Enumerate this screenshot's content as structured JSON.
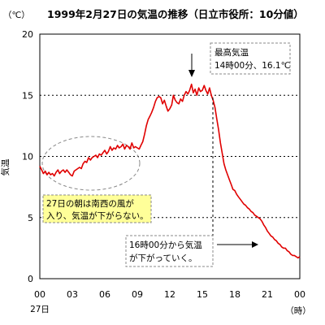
{
  "chart_data": {
    "type": "line",
    "title": "1999年2月27日の気温の推移（日立市役所：10分値）",
    "unit_label": "（℃）",
    "ylabel": "気温",
    "xlabel_unit": "（時）",
    "date_label": "27日",
    "ylim": [
      0,
      20
    ],
    "xlim": [
      0,
      24
    ],
    "y_ticks": [
      "0",
      "5",
      "10",
      "15",
      "20"
    ],
    "y_tick_values": [
      0,
      5,
      10,
      15,
      20
    ],
    "x_ticks": [
      "00",
      "03",
      "06",
      "09",
      "12",
      "15",
      "18",
      "21",
      "00"
    ],
    "x_tick_values": [
      0,
      3,
      6,
      9,
      12,
      15,
      18,
      21,
      24
    ],
    "grid": "dashed horizontal at 5, 10, 15",
    "line_color": "#e00000",
    "series": [
      {
        "x": [
          0.0,
          0.17,
          0.33,
          0.5,
          0.67,
          0.83,
          1.0,
          1.17,
          1.33,
          1.5,
          1.67,
          1.83,
          2.0,
          2.17,
          2.33,
          2.5,
          2.67,
          2.83,
          3.0,
          3.17,
          3.33,
          3.5,
          3.67,
          3.83,
          4.0,
          4.17,
          4.33,
          4.5,
          4.67,
          4.83,
          5.0,
          5.17,
          5.33,
          5.5,
          5.67,
          5.83,
          6.0,
          6.17,
          6.33,
          6.5,
          6.67,
          6.83,
          7.0,
          7.17,
          7.33,
          7.5,
          7.67,
          7.83,
          8.0,
          8.17,
          8.33,
          8.5,
          8.67,
          8.83,
          9.0,
          9.17,
          9.33,
          9.5,
          9.67,
          9.83,
          10.0,
          10.17,
          10.33,
          10.5,
          10.67,
          10.83,
          11.0,
          11.17,
          11.33,
          11.5,
          11.67,
          11.83,
          12.0,
          12.17,
          12.33,
          12.5,
          12.67,
          12.83,
          13.0,
          13.17,
          13.33,
          13.5,
          13.67,
          13.83,
          14.0,
          14.17,
          14.33,
          14.5,
          14.67,
          14.83,
          15.0,
          15.17,
          15.33,
          15.5,
          15.67,
          15.83,
          16.0,
          16.17,
          16.33,
          16.5,
          16.67,
          16.83,
          17.0,
          17.17,
          17.33,
          17.5,
          17.67,
          17.83,
          18.0,
          18.17,
          18.33,
          18.5,
          18.67,
          18.83,
          19.0,
          19.17,
          19.33,
          19.5,
          19.67,
          19.83,
          20.0,
          20.17,
          20.33,
          20.5,
          20.67,
          20.83,
          21.0,
          21.17,
          21.33,
          21.5,
          21.67,
          21.83,
          22.0,
          22.17,
          22.33,
          22.5,
          22.67,
          22.83,
          23.0,
          23.17,
          23.33,
          23.5,
          23.67,
          23.83,
          24.0
        ],
        "values": [
          9.2,
          8.9,
          8.6,
          8.8,
          8.5,
          8.7,
          8.5,
          8.6,
          8.4,
          8.7,
          8.9,
          8.6,
          8.8,
          8.9,
          8.7,
          8.9,
          8.7,
          8.5,
          8.4,
          8.8,
          8.9,
          9.0,
          9.1,
          9.0,
          9.4,
          9.6,
          9.5,
          9.9,
          9.7,
          9.9,
          10.0,
          10.1,
          9.9,
          10.2,
          10.1,
          10.3,
          10.5,
          10.2,
          10.4,
          10.8,
          10.5,
          10.7,
          10.6,
          10.9,
          10.7,
          10.8,
          11.0,
          10.6,
          10.9,
          10.8,
          10.6,
          11.1,
          10.7,
          10.8,
          10.7,
          10.6,
          10.9,
          11.2,
          11.8,
          12.5,
          13.0,
          13.3,
          13.6,
          14.0,
          14.5,
          14.8,
          14.9,
          14.8,
          14.3,
          14.6,
          14.1,
          13.7,
          13.9,
          14.2,
          15.0,
          14.6,
          14.4,
          14.3,
          14.7,
          14.5,
          15.0,
          15.3,
          15.1,
          15.4,
          15.9,
          15.2,
          15.5,
          15.0,
          15.6,
          15.3,
          15.4,
          15.8,
          15.4,
          15.1,
          15.6,
          15.0,
          14.6,
          14.0,
          13.1,
          12.2,
          11.1,
          10.3,
          9.4,
          8.9,
          8.5,
          8.1,
          7.7,
          7.3,
          7.2,
          6.9,
          6.7,
          6.5,
          6.3,
          6.1,
          6.0,
          5.8,
          5.7,
          5.5,
          5.4,
          5.2,
          5.1,
          5.0,
          4.9,
          4.7,
          4.4,
          4.2,
          3.9,
          3.7,
          3.5,
          3.4,
          3.2,
          3.1,
          2.9,
          2.8,
          2.6,
          2.5,
          2.5,
          2.3,
          2.2,
          2.0,
          1.9,
          1.9,
          1.8,
          1.7,
          1.8
        ]
      }
    ],
    "annotations": {
      "max_box": {
        "line1": "最高気温",
        "line2": "14時00分、16.1℃"
      },
      "morning_box": {
        "line1": "27日の朝は南西の風が",
        "line2": "入り、気温が下がらない。"
      },
      "drop_box": {
        "line1": "16時00分から気温",
        "line2": "が下がっていく。"
      }
    },
    "annotation_fill": "#ffff99"
  }
}
